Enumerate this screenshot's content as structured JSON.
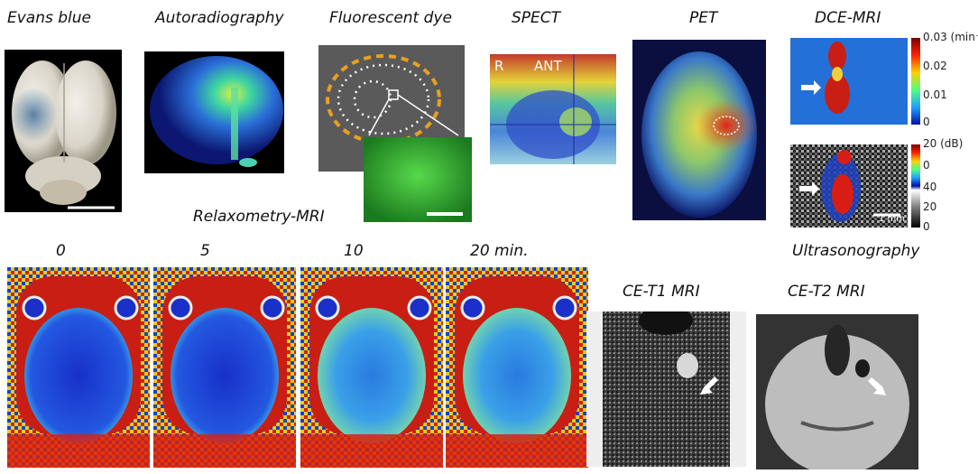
{
  "labels": {
    "evans_blue": "Evans blue",
    "autoradiography": "Autoradiography",
    "fluorescent_dye": "Fluorescent dye",
    "spect": "SPECT",
    "pet": "PET",
    "dce_mri": "DCE-MRI",
    "relaxometry_mri": "Relaxometry-MRI",
    "ultrasonography": "Ultrasonography",
    "ce_t1_mri": "CE-T1 MRI",
    "ce_t2_mri": "CE-T2 MRI"
  },
  "relaxometry_times": [
    "0",
    "5",
    "10",
    "20 min."
  ],
  "spect_overlay": {
    "r": "R",
    "ant": "ANT"
  },
  "dce_colorbar": {
    "ticks": [
      "0.03 (min⁻¹)",
      "0.02",
      "0.01",
      "0"
    ]
  },
  "us_colorbar": {
    "ticks": [
      "20 (dB)",
      "0",
      "40",
      "20",
      "0"
    ],
    "scale": "1 mm"
  },
  "colors": {
    "jet_blue": "#1a2fd6",
    "jet_red": "#d41a0c",
    "grey": "#888888"
  }
}
